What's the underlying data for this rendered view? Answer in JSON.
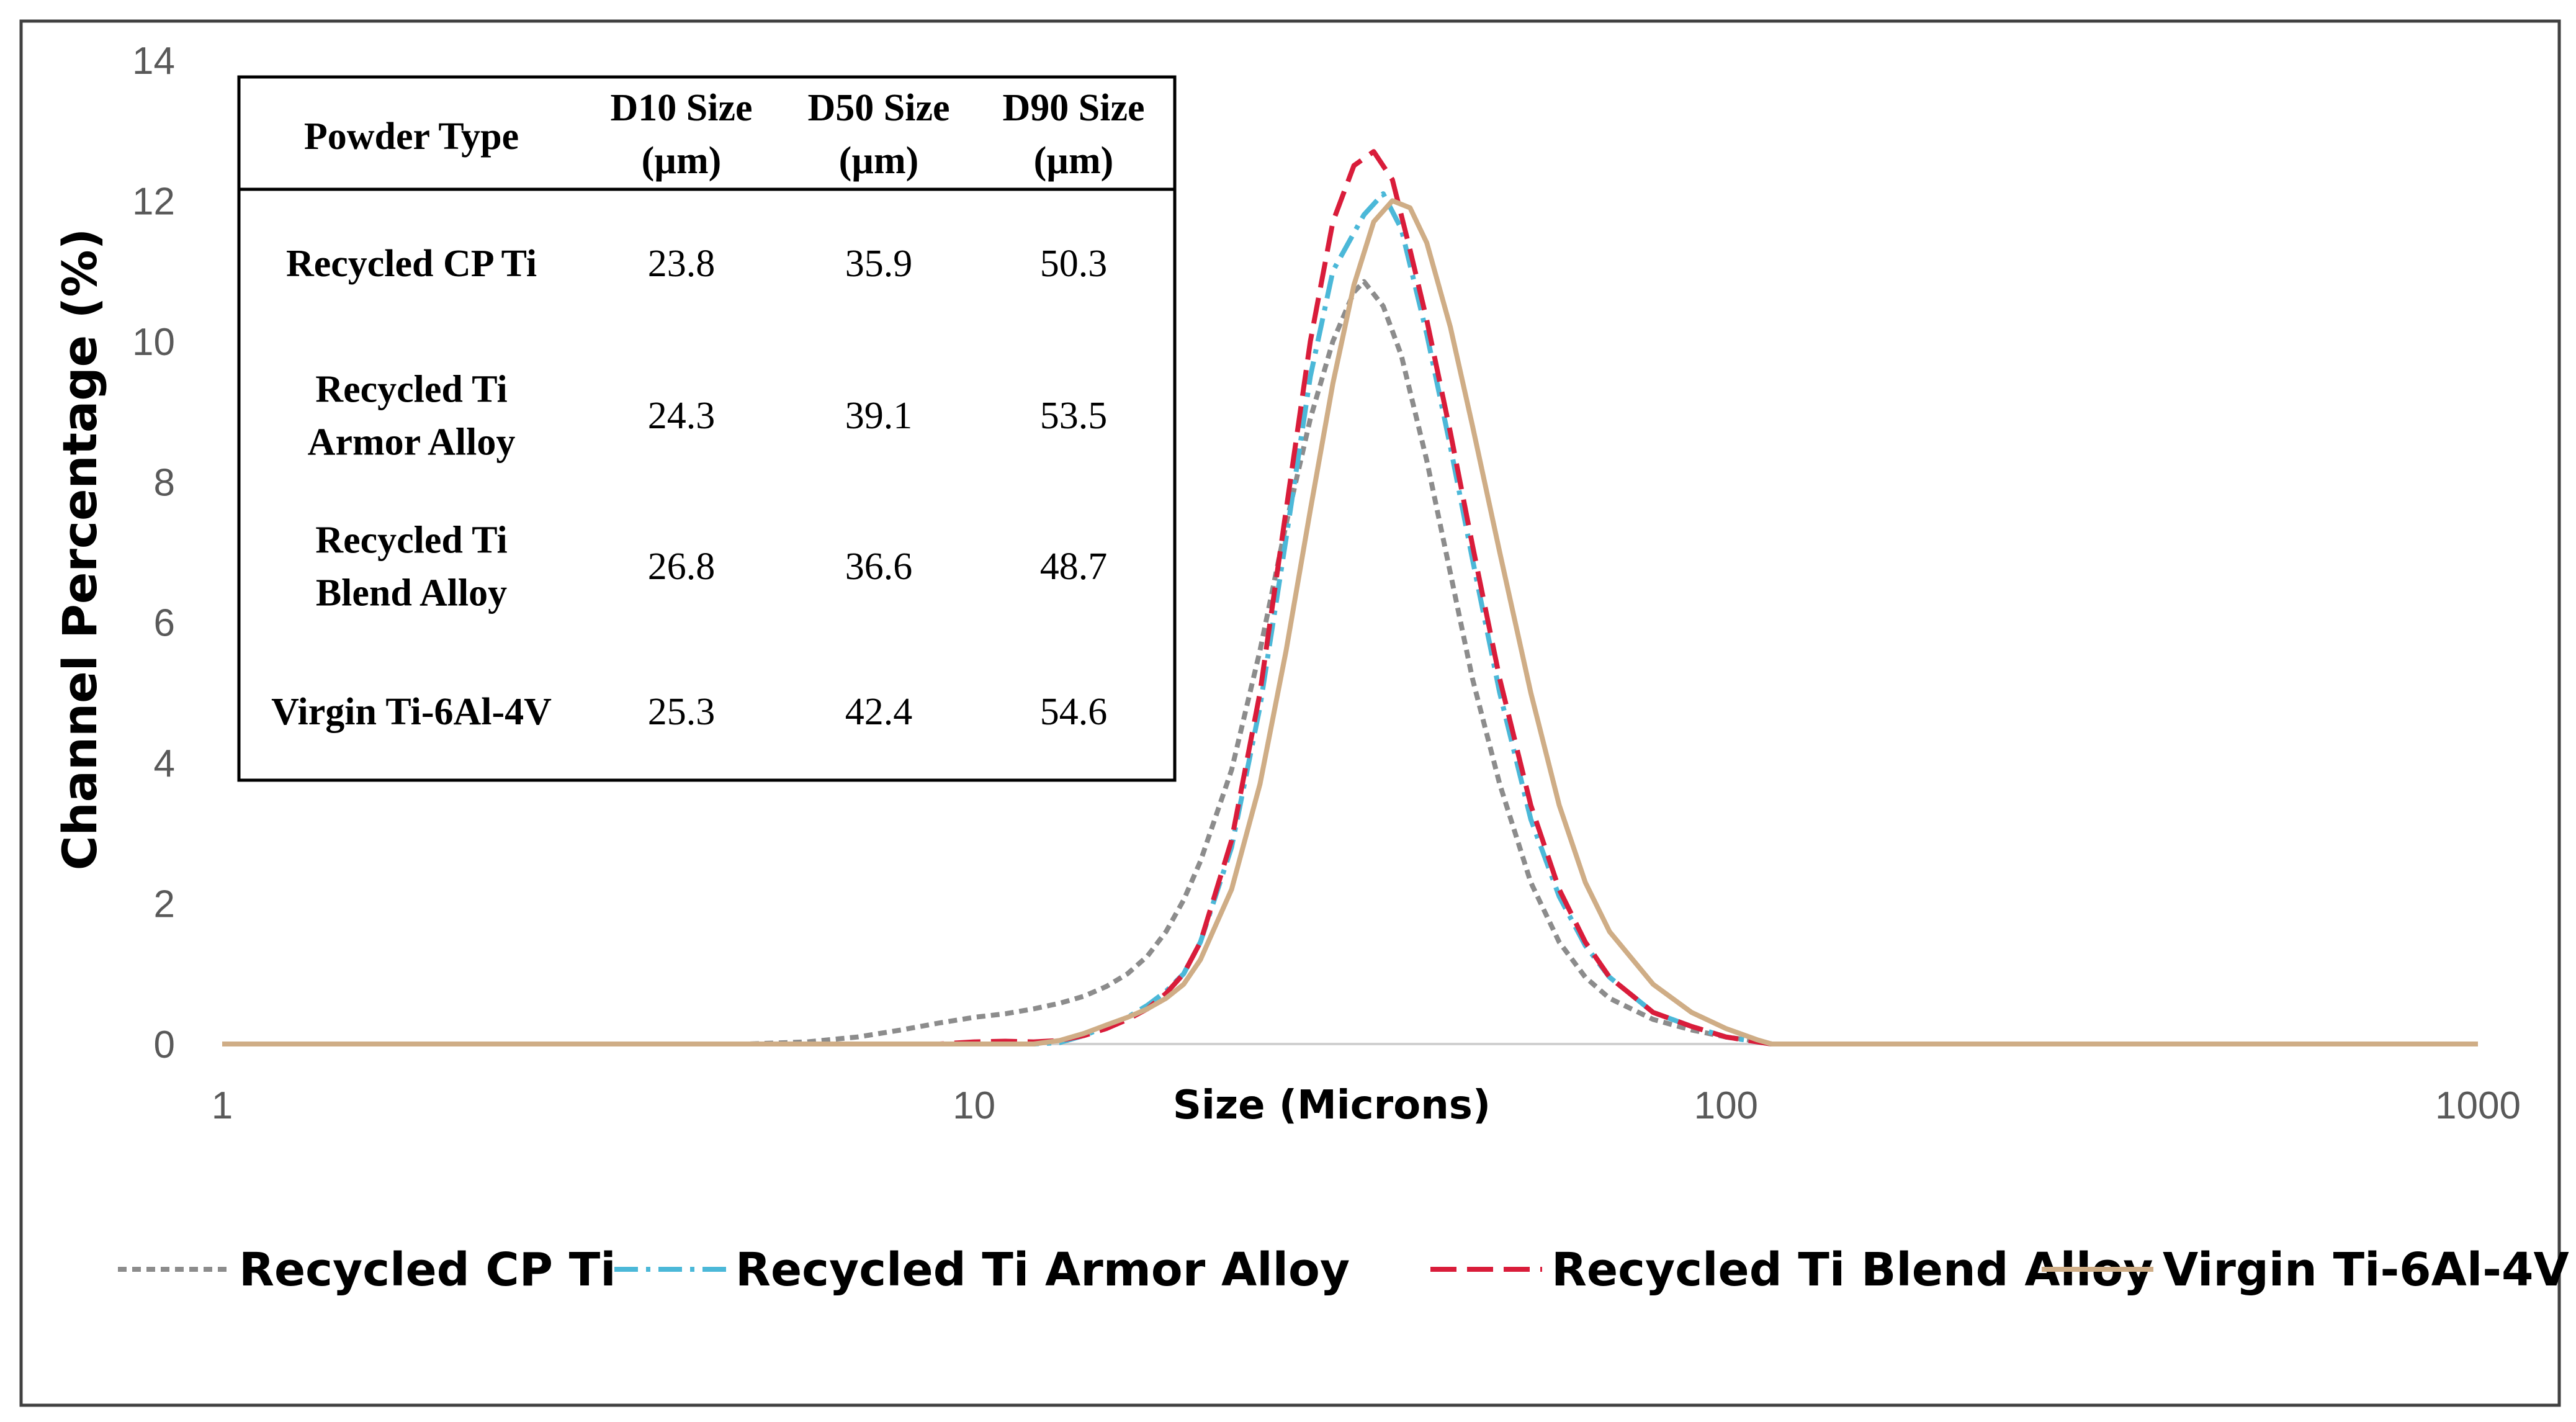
{
  "chart_data": {
    "type": "line",
    "x_scale": "log",
    "xlim": [
      1,
      1000
    ],
    "ylim": [
      0,
      14
    ],
    "xticks": [
      "1",
      "10",
      "100",
      "1000"
    ],
    "yticks": [
      "0",
      "2",
      "4",
      "6",
      "8",
      "10",
      "12",
      "14"
    ],
    "xlabel": "Size (Microns)",
    "ylabel": "Channel Percentage (%)",
    "legend_position": "bottom",
    "grid": false,
    "series": [
      {
        "name": "Recycled CP Ti",
        "color": "#8c8c8c",
        "style": "dotted",
        "points": [
          [
            1,
            0
          ],
          [
            5,
            0
          ],
          [
            6,
            0.03
          ],
          [
            7,
            0.1
          ],
          [
            8,
            0.2
          ],
          [
            9,
            0.3
          ],
          [
            10,
            0.38
          ],
          [
            11,
            0.43
          ],
          [
            12,
            0.5
          ],
          [
            13,
            0.58
          ],
          [
            14,
            0.68
          ],
          [
            15,
            0.82
          ],
          [
            16,
            1.0
          ],
          [
            17,
            1.25
          ],
          [
            18,
            1.6
          ],
          [
            19,
            2.05
          ],
          [
            20,
            2.6
          ],
          [
            22,
            3.9
          ],
          [
            24,
            5.6
          ],
          [
            26,
            7.4
          ],
          [
            28,
            8.9
          ],
          [
            30,
            10.0
          ],
          [
            32,
            10.7
          ],
          [
            33,
            10.85
          ],
          [
            35,
            10.5
          ],
          [
            37,
            9.8
          ],
          [
            40,
            8.3
          ],
          [
            43,
            6.7
          ],
          [
            46,
            5.2
          ],
          [
            50,
            3.7
          ],
          [
            55,
            2.3
          ],
          [
            60,
            1.45
          ],
          [
            65,
            0.95
          ],
          [
            70,
            0.65
          ],
          [
            80,
            0.35
          ],
          [
            90,
            0.2
          ],
          [
            100,
            0.1
          ],
          [
            110,
            0.04
          ],
          [
            115,
            0
          ],
          [
            1000,
            0
          ]
        ]
      },
      {
        "name": "Recycled Ti Armor Alloy",
        "color": "#4bb8d8",
        "style": "dashdot",
        "points": [
          [
            1,
            0
          ],
          [
            10,
            0
          ],
          [
            11,
            0
          ],
          [
            12,
            0
          ],
          [
            13,
            0.02
          ],
          [
            14,
            0.12
          ],
          [
            15,
            0.25
          ],
          [
            16,
            0.38
          ],
          [
            17,
            0.55
          ],
          [
            18,
            0.75
          ],
          [
            19,
            1.0
          ],
          [
            20,
            1.45
          ],
          [
            22,
            2.8
          ],
          [
            24,
            4.8
          ],
          [
            26,
            7.2
          ],
          [
            28,
            9.5
          ],
          [
            30,
            11.0
          ],
          [
            33,
            11.8
          ],
          [
            35,
            12.1
          ],
          [
            37,
            11.6
          ],
          [
            40,
            10.1
          ],
          [
            43,
            8.5
          ],
          [
            46,
            6.9
          ],
          [
            50,
            5.0
          ],
          [
            55,
            3.2
          ],
          [
            60,
            2.1
          ],
          [
            65,
            1.4
          ],
          [
            70,
            0.95
          ],
          [
            80,
            0.45
          ],
          [
            90,
            0.25
          ],
          [
            100,
            0.1
          ],
          [
            110,
            0.03
          ],
          [
            115,
            0
          ],
          [
            1000,
            0
          ]
        ]
      },
      {
        "name": "Recycled Ti Blend Alloy",
        "color": "#d91c3a",
        "style": "dashed",
        "points": [
          [
            1,
            0
          ],
          [
            9,
            0
          ],
          [
            10,
            0.03
          ],
          [
            11,
            0.04
          ],
          [
            12,
            0.03
          ],
          [
            13,
            0.05
          ],
          [
            14,
            0.12
          ],
          [
            15,
            0.22
          ],
          [
            16,
            0.35
          ],
          [
            17,
            0.5
          ],
          [
            18,
            0.72
          ],
          [
            19,
            1.0
          ],
          [
            20,
            1.45
          ],
          [
            22,
            2.9
          ],
          [
            24,
            5.0
          ],
          [
            26,
            7.6
          ],
          [
            28,
            10.0
          ],
          [
            30,
            11.7
          ],
          [
            32,
            12.5
          ],
          [
            34,
            12.7
          ],
          [
            36,
            12.3
          ],
          [
            38,
            11.3
          ],
          [
            40,
            10.3
          ],
          [
            43,
            8.7
          ],
          [
            46,
            7.1
          ],
          [
            50,
            5.2
          ],
          [
            55,
            3.4
          ],
          [
            60,
            2.2
          ],
          [
            65,
            1.45
          ],
          [
            70,
            0.95
          ],
          [
            80,
            0.45
          ],
          [
            90,
            0.25
          ],
          [
            100,
            0.1
          ],
          [
            110,
            0.03
          ],
          [
            115,
            0
          ],
          [
            1000,
            0
          ]
        ]
      },
      {
        "name": "Virgin Ti-6Al-4V",
        "color": "#cfad86",
        "style": "solid",
        "points": [
          [
            1,
            0
          ],
          [
            12,
            0
          ],
          [
            13,
            0.05
          ],
          [
            14,
            0.15
          ],
          [
            15,
            0.27
          ],
          [
            16,
            0.38
          ],
          [
            17,
            0.5
          ],
          [
            18,
            0.65
          ],
          [
            19,
            0.85
          ],
          [
            20,
            1.2
          ],
          [
            22,
            2.2
          ],
          [
            24,
            3.7
          ],
          [
            26,
            5.6
          ],
          [
            28,
            7.6
          ],
          [
            30,
            9.4
          ],
          [
            32,
            10.8
          ],
          [
            34,
            11.7
          ],
          [
            36,
            12.0
          ],
          [
            38,
            11.9
          ],
          [
            40,
            11.4
          ],
          [
            43,
            10.2
          ],
          [
            46,
            8.8
          ],
          [
            50,
            7.0
          ],
          [
            55,
            5.0
          ],
          [
            60,
            3.4
          ],
          [
            65,
            2.3
          ],
          [
            70,
            1.6
          ],
          [
            80,
            0.85
          ],
          [
            90,
            0.45
          ],
          [
            100,
            0.22
          ],
          [
            110,
            0.06
          ],
          [
            115,
            0
          ],
          [
            1000,
            0
          ]
        ]
      }
    ],
    "table": {
      "headers": [
        [
          "Powder Type"
        ],
        [
          "D10 Size",
          "(µm)"
        ],
        [
          "D50 Size",
          "(µm)"
        ],
        [
          "D90 Size",
          "(µm)"
        ]
      ],
      "rows": [
        {
          "label": [
            "Recycled CP Ti"
          ],
          "d10": "23.8",
          "d50": "35.9",
          "d90": "50.3"
        },
        {
          "label": [
            "Recycled Ti",
            "Armor Alloy"
          ],
          "d10": "24.3",
          "d50": "39.1",
          "d90": "53.5"
        },
        {
          "label": [
            "Recycled Ti",
            "Blend Alloy"
          ],
          "d10": "26.8",
          "d50": "36.6",
          "d90": "48.7"
        },
        {
          "label": [
            "Virgin Ti-6Al-4V"
          ],
          "d10": "25.3",
          "d50": "42.4",
          "d90": "54.6"
        }
      ]
    }
  }
}
